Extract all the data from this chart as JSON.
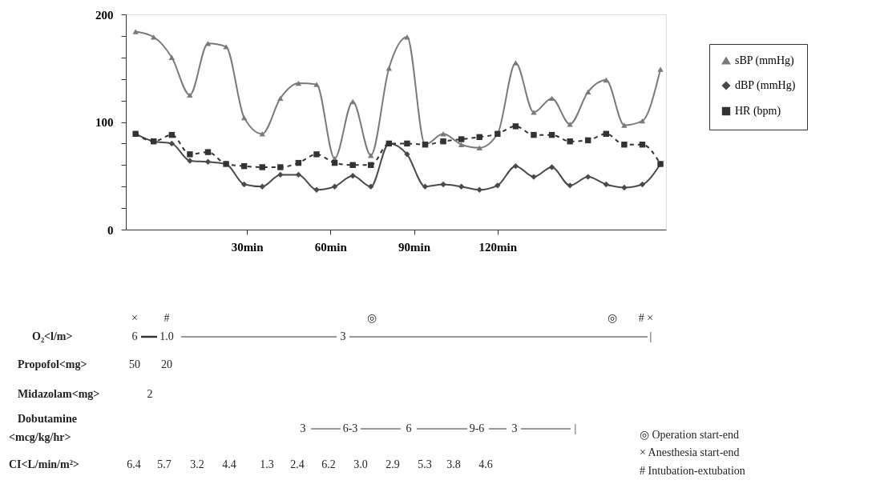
{
  "chart_data": {
    "type": "line",
    "x": [
      -10,
      -3.5,
      3,
      9.5,
      16,
      22.5,
      29,
      35.5,
      42,
      48.5,
      55,
      61.5,
      68,
      74.5,
      81,
      87.5,
      94,
      100.5,
      107,
      113.5,
      120,
      126.5,
      133,
      139.5,
      146,
      152.5,
      159,
      165.5,
      172,
      178.5
    ],
    "series": [
      {
        "name": "sBP (mmHg)",
        "color": "#7a7a7a",
        "marker": "triangle",
        "line_style": "solid",
        "values": [
          184,
          179,
          160,
          125,
          173,
          170,
          104,
          89,
          122,
          136,
          135,
          66,
          119,
          69,
          150,
          179,
          79,
          89,
          79,
          76,
          89,
          155,
          109,
          122,
          98,
          128,
          139,
          97,
          101,
          149
        ]
      },
      {
        "name": "dBP (mmHg)",
        "color": "#4a4a4a",
        "marker": "diamond",
        "line_style": "solid",
        "values": [
          89,
          82,
          80,
          64,
          63,
          61,
          42,
          40,
          51,
          51,
          37,
          40,
          50,
          40,
          80,
          70,
          40,
          42,
          40,
          37,
          41,
          59,
          49,
          58,
          41,
          49,
          42,
          39,
          42,
          61
        ]
      },
      {
        "name": "HR (bpm)",
        "color": "#333333",
        "marker": "square",
        "line_style": "dashed",
        "values": [
          89,
          82,
          88,
          70,
          72,
          61,
          59,
          58,
          58,
          62,
          70,
          62,
          60,
          60,
          80,
          80,
          79,
          82,
          84,
          86,
          89,
          96,
          88,
          88,
          82,
          83,
          89,
          79,
          79,
          61
        ]
      }
    ],
    "xlim": [
      -13.5,
      180.5
    ],
    "xticks": [
      {
        "value": 30,
        "label": "30min"
      },
      {
        "value": 60,
        "label": "60min"
      },
      {
        "value": 90,
        "label": "90min"
      },
      {
        "value": 120,
        "label": "120min"
      }
    ],
    "ylim": [
      0,
      200
    ],
    "yticks": [
      0,
      {
        "value": 20,
        "label": null
      },
      {
        "value": 40,
        "label": null
      },
      {
        "value": 60,
        "label": null
      },
      {
        "value": 80,
        "label": null
      },
      100,
      {
        "value": 120,
        "label": null
      },
      {
        "value": 140,
        "label": null
      },
      {
        "value": 160,
        "label": null
      },
      {
        "value": 180,
        "label": null
      },
      200
    ],
    "grid": false,
    "legend": "top right",
    "annotations": [
      "×",
      "#",
      "◎",
      "◎",
      "# ×",
      "O₂<l/m>",
      "6",
      "1.0",
      "3",
      "|",
      "Propofol<mg>",
      "50",
      "20",
      "Midazolam<mg>",
      "2",
      "Dobutamine",
      "<mcg/kg/hr>",
      "3",
      "6-3",
      "6",
      "9-6",
      "3",
      "|",
      "CI<L/min/m²>",
      "6.4",
      "5.7",
      "3.2",
      "4.4",
      "1.3",
      "2.4",
      "6.2",
      "3.0",
      "2.9",
      "5.3",
      "3.8",
      "4.6",
      "◎ Operation start-end",
      "× Anesthesia start-end",
      "# Intubation-extubation"
    ]
  }
}
